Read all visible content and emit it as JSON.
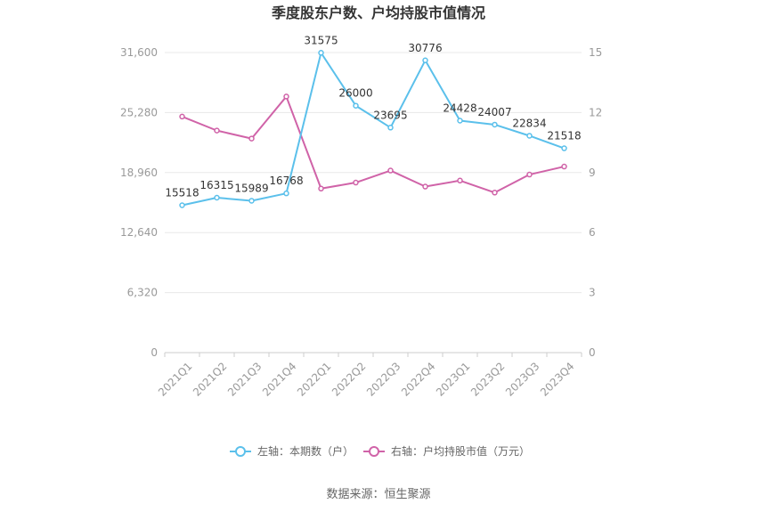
{
  "chart_data": {
    "type": "line",
    "title": "季度股东户数、户均持股市值情况",
    "categories": [
      "2021Q1",
      "2021Q2",
      "2021Q3",
      "2021Q4",
      "2022Q1",
      "2022Q2",
      "2022Q3",
      "2022Q4",
      "2023Q1",
      "2023Q2",
      "2023Q3",
      "2023Q4"
    ],
    "left_axis": {
      "ticks": [
        "0",
        "6,320",
        "12,640",
        "18,960",
        "25,280",
        "31,600"
      ],
      "min": 0,
      "max": 31600
    },
    "right_axis": {
      "ticks": [
        "0",
        "3",
        "6",
        "9",
        "12",
        "15"
      ],
      "min": 0,
      "max": 15
    },
    "series": [
      {
        "name": "左轴：本期数（户）",
        "axis": "left",
        "color": "#5bc0eb",
        "values": [
          15518,
          16315,
          15989,
          16768,
          31575,
          26000,
          23695,
          30776,
          24428,
          24007,
          22834,
          21518
        ],
        "labels": [
          "15518",
          "16315",
          "15989",
          "16768",
          "31575",
          "26000",
          "23695",
          "30776",
          "24428",
          "24007",
          "22834",
          "21518"
        ]
      },
      {
        "name": "右轴：户均持股市值（万元）",
        "axis": "right",
        "color": "#d063a8",
        "values": [
          11.8,
          11.1,
          10.7,
          12.8,
          8.2,
          8.5,
          9.1,
          8.3,
          8.6,
          8.0,
          8.9,
          9.3
        ]
      }
    ],
    "source": "数据来源：恒生聚源",
    "legend_position": "bottom",
    "grid": true
  }
}
